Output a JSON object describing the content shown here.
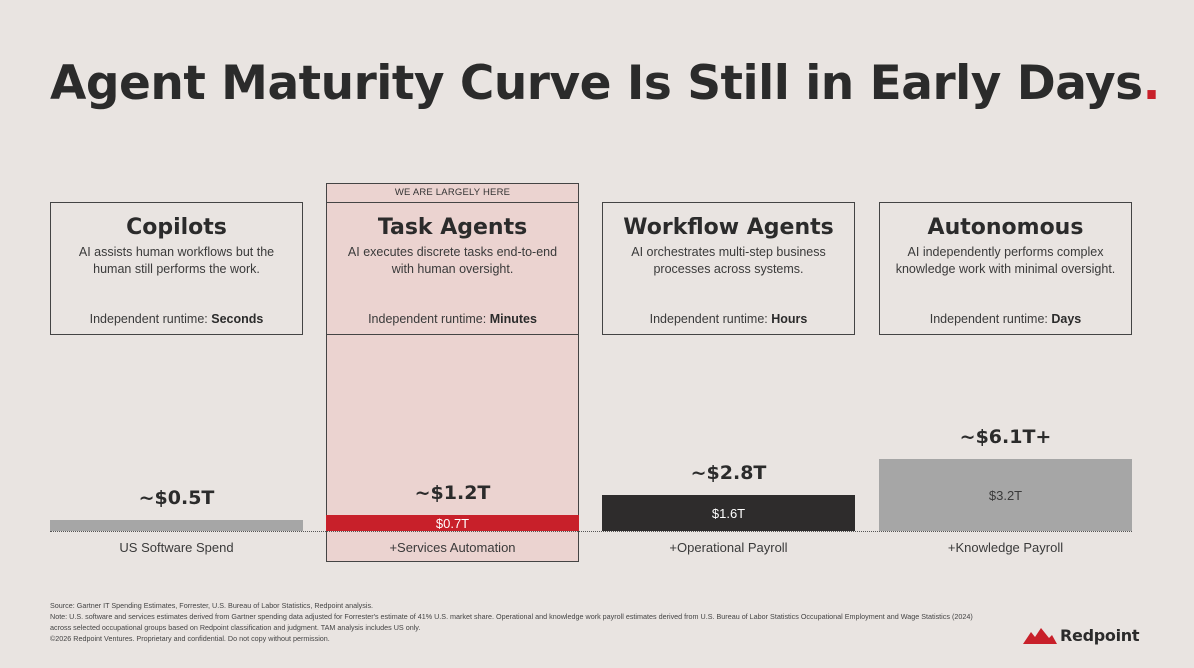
{
  "title": "Agent Maturity Curve Is Still in Early Days",
  "title_dot": ".",
  "highlight_label": "WE ARE LARGELY HERE",
  "runtime_prefix": "Independent runtime: ",
  "stages": [
    {
      "title": "Copilots",
      "description": "AI assists human workflows but the human still performs the work.",
      "runtime": "Seconds"
    },
    {
      "title": "Task Agents",
      "description": "AI executes discrete tasks end-to-end with human oversight.",
      "runtime": "Minutes"
    },
    {
      "title": "Workflow Agents",
      "description": "AI orchestrates multi-step business processes across systems.",
      "runtime": "Hours"
    },
    {
      "title": "Autonomous",
      "description": "AI independently performs complex knowledge work with minimal oversight.",
      "runtime": "Days"
    }
  ],
  "chart_data": {
    "type": "bar",
    "categories": [
      "US Software Spend",
      "+Services Automation",
      "+Operational Payroll",
      "+Knowledge Payroll"
    ],
    "values": [
      0.5,
      0.7,
      1.6,
      3.2
    ],
    "value_labels": [
      "",
      "$0.7T",
      "$1.6T",
      "$3.2T"
    ],
    "cumulative_totals": [
      0.5,
      1.2,
      2.8,
      6.1
    ],
    "total_labels": [
      "~$0.5T",
      "~$1.2T",
      "~$2.8T",
      "~$6.1T+"
    ],
    "unit": "$ trillions",
    "colors": [
      "#a6a6a6",
      "#c8202a",
      "#2e2c2c",
      "#a6a6a6"
    ],
    "label_colors": [
      "#ffffff",
      "#ffffff",
      "#ffffff",
      "#3a3a3a"
    ],
    "highlight_index": 1
  },
  "footnotes": [
    "Source: Gartner IT Spending Estimates, Forrester, U.S. Bureau of Labor Statistics, Redpoint analysis.",
    "Note: U.S. software and services estimates derived from Gartner spending data adjusted for Forrester's estimate of 41% U.S. market share. Operational and knowledge work payroll estimates derived from U.S. Bureau of Labor Statistics Occupational Employment and Wage Statistics (2024)",
    "across selected occupational groups based on Redpoint classification and judgment. TAM analysis includes US only.",
    "©2026 Redpoint Ventures. Proprietary and confidential. Do not copy without permission."
  ],
  "logo_text": "Redpoint",
  "accent_color": "#c8202a",
  "background_color": "#e9e4e1"
}
